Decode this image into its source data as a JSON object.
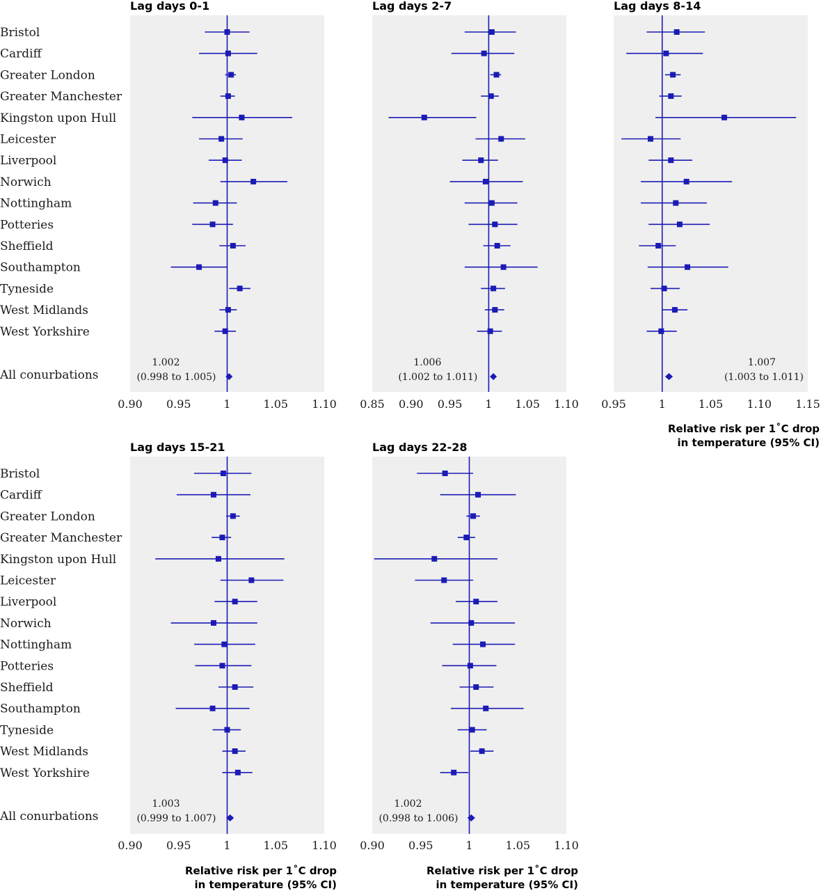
{
  "chart_data": {
    "type": "forest",
    "categories": [
      "Bristol",
      "Cardiff",
      "Greater London",
      "Greater Manchester",
      "Kingston upon Hull",
      "Leicester",
      "Liverpool",
      "Norwich",
      "Nottingham",
      "Potteries",
      "Sheffield",
      "Southampton",
      "Tyneside",
      "West Midlands",
      "West Yorkshire"
    ],
    "pooled_label": "All conurbations",
    "xlabel_line1": "Relative risk per 1˚C drop",
    "xlabel_line2": "in temperature (95% CI)",
    "reference_line": 1,
    "colors": {
      "marker": "#1b1bb5",
      "panel_bg": "#efefef"
    },
    "panels": [
      {
        "title": "Lag days 0-1",
        "xlim": [
          0.9,
          1.1
        ],
        "ticks": [
          "0.90",
          "0.95",
          "1",
          "1.05",
          "1.10"
        ],
        "series": [
          {
            "rr": 1.0,
            "lo": 0.977,
            "hi": 1.023
          },
          {
            "rr": 1.001,
            "lo": 0.971,
            "hi": 1.031
          },
          {
            "rr": 1.004,
            "lo": 0.998,
            "hi": 1.009
          },
          {
            "rr": 1.001,
            "lo": 0.993,
            "hi": 1.008
          },
          {
            "rr": 1.015,
            "lo": 0.964,
            "hi": 1.067
          },
          {
            "rr": 0.994,
            "lo": 0.971,
            "hi": 1.016
          },
          {
            "rr": 0.998,
            "lo": 0.981,
            "hi": 1.015
          },
          {
            "rr": 1.027,
            "lo": 0.993,
            "hi": 1.062
          },
          {
            "rr": 0.988,
            "lo": 0.965,
            "hi": 1.01
          },
          {
            "rr": 0.985,
            "lo": 0.964,
            "hi": 1.006
          },
          {
            "rr": 1.006,
            "lo": 0.992,
            "hi": 1.019
          },
          {
            "rr": 0.971,
            "lo": 0.942,
            "hi": 1.0
          },
          {
            "rr": 1.013,
            "lo": 1.002,
            "hi": 1.024
          },
          {
            "rr": 1.001,
            "lo": 0.992,
            "hi": 1.01
          },
          {
            "rr": 0.998,
            "lo": 0.987,
            "hi": 1.009
          }
        ],
        "pooled": {
          "rr": 1.002,
          "lo": 0.998,
          "hi": 1.005,
          "text1": "1.002",
          "text2": "(0.998 to 1.005)"
        }
      },
      {
        "title": "Lag days 2-7",
        "xlim": [
          0.85,
          1.1
        ],
        "ticks": [
          "0.85",
          "0.90",
          "0.95",
          "1",
          "1.05",
          "1.10"
        ],
        "series": [
          {
            "rr": 1.004,
            "lo": 0.969,
            "hi": 1.035
          },
          {
            "rr": 0.994,
            "lo": 0.952,
            "hi": 1.033
          },
          {
            "rr": 1.01,
            "lo": 1.002,
            "hi": 1.016
          },
          {
            "rr": 1.003,
            "lo": 0.99,
            "hi": 1.013
          },
          {
            "rr": 0.917,
            "lo": 0.871,
            "hi": 0.984
          },
          {
            "rr": 1.016,
            "lo": 0.983,
            "hi": 1.047
          },
          {
            "rr": 0.99,
            "lo": 0.966,
            "hi": 1.012
          },
          {
            "rr": 0.996,
            "lo": 0.95,
            "hi": 1.044
          },
          {
            "rr": 1.004,
            "lo": 0.969,
            "hi": 1.037
          },
          {
            "rr": 1.008,
            "lo": 0.974,
            "hi": 1.037
          },
          {
            "rr": 1.011,
            "lo": 0.993,
            "hi": 1.028
          },
          {
            "rr": 1.019,
            "lo": 0.969,
            "hi": 1.063
          },
          {
            "rr": 1.006,
            "lo": 0.99,
            "hi": 1.021
          },
          {
            "rr": 1.008,
            "lo": 0.995,
            "hi": 1.02
          },
          {
            "rr": 1.002,
            "lo": 0.985,
            "hi": 1.017
          }
        ],
        "pooled": {
          "rr": 1.006,
          "lo": 1.002,
          "hi": 1.011,
          "text1": "1.006",
          "text2": "(1.002 to 1.011)"
        }
      },
      {
        "title": "Lag days 8-14",
        "xlim": [
          0.95,
          1.15
        ],
        "ticks": [
          "0.95",
          "1",
          "1.05",
          "1.10",
          "1.15"
        ],
        "series": [
          {
            "rr": 1.015,
            "lo": 0.984,
            "hi": 1.044
          },
          {
            "rr": 1.004,
            "lo": 0.963,
            "hi": 1.042
          },
          {
            "rr": 1.011,
            "lo": 1.003,
            "hi": 1.019
          },
          {
            "rr": 1.009,
            "lo": 0.997,
            "hi": 1.02
          },
          {
            "rr": 1.064,
            "lo": 0.993,
            "hi": 1.138
          },
          {
            "rr": 0.988,
            "lo": 0.958,
            "hi": 1.019
          },
          {
            "rr": 1.009,
            "lo": 0.986,
            "hi": 1.031
          },
          {
            "rr": 1.025,
            "lo": 0.978,
            "hi": 1.072
          },
          {
            "rr": 1.014,
            "lo": 0.978,
            "hi": 1.046
          },
          {
            "rr": 1.018,
            "lo": 0.986,
            "hi": 1.049
          },
          {
            "rr": 0.996,
            "lo": 0.976,
            "hi": 1.014
          },
          {
            "rr": 1.026,
            "lo": 0.985,
            "hi": 1.068
          },
          {
            "rr": 1.002,
            "lo": 0.988,
            "hi": 1.018
          },
          {
            "rr": 1.013,
            "lo": 1.0,
            "hi": 1.026
          },
          {
            "rr": 0.999,
            "lo": 0.984,
            "hi": 1.015
          }
        ],
        "pooled": {
          "rr": 1.007,
          "lo": 1.003,
          "hi": 1.011,
          "text1": "1.007",
          "text2": "(1.003 to 1.011)"
        }
      },
      {
        "title": "Lag days 15-21",
        "xlim": [
          0.9,
          1.1
        ],
        "ticks": [
          "0.90",
          "0.95",
          "1",
          "1.05",
          "1.10"
        ],
        "series": [
          {
            "rr": 0.996,
            "lo": 0.966,
            "hi": 1.025
          },
          {
            "rr": 0.986,
            "lo": 0.948,
            "hi": 1.024
          },
          {
            "rr": 1.006,
            "lo": 0.999,
            "hi": 1.013
          },
          {
            "rr": 0.995,
            "lo": 0.984,
            "hi": 1.004
          },
          {
            "rr": 0.991,
            "lo": 0.926,
            "hi": 1.059
          },
          {
            "rr": 1.025,
            "lo": 0.993,
            "hi": 1.058
          },
          {
            "rr": 1.008,
            "lo": 0.987,
            "hi": 1.031
          },
          {
            "rr": 0.986,
            "lo": 0.942,
            "hi": 1.031
          },
          {
            "rr": 0.997,
            "lo": 0.966,
            "hi": 1.029
          },
          {
            "rr": 0.995,
            "lo": 0.967,
            "hi": 1.025
          },
          {
            "rr": 1.008,
            "lo": 0.991,
            "hi": 1.027
          },
          {
            "rr": 0.985,
            "lo": 0.947,
            "hi": 1.023
          },
          {
            "rr": 1.0,
            "lo": 0.985,
            "hi": 1.014
          },
          {
            "rr": 1.008,
            "lo": 0.995,
            "hi": 1.019
          },
          {
            "rr": 1.011,
            "lo": 0.995,
            "hi": 1.026
          }
        ],
        "pooled": {
          "rr": 1.003,
          "lo": 0.999,
          "hi": 1.007,
          "text1": "1.003",
          "text2": "(0.999 to 1.007)"
        }
      },
      {
        "title": "Lag days 22-28",
        "xlim": [
          0.9,
          1.1
        ],
        "ticks": [
          "0.90",
          "0.95",
          "1",
          "1.05",
          "1.10"
        ],
        "series": [
          {
            "rr": 0.975,
            "lo": 0.946,
            "hi": 1.004
          },
          {
            "rr": 1.009,
            "lo": 0.97,
            "hi": 1.048
          },
          {
            "rr": 1.004,
            "lo": 0.997,
            "hi": 1.011
          },
          {
            "rr": 0.997,
            "lo": 0.988,
            "hi": 1.006
          },
          {
            "rr": 0.964,
            "lo": 0.902,
            "hi": 1.029
          },
          {
            "rr": 0.974,
            "lo": 0.944,
            "hi": 1.004
          },
          {
            "rr": 1.007,
            "lo": 0.986,
            "hi": 1.029
          },
          {
            "rr": 1.002,
            "lo": 0.96,
            "hi": 1.047
          },
          {
            "rr": 1.014,
            "lo": 0.983,
            "hi": 1.047
          },
          {
            "rr": 1.001,
            "lo": 0.972,
            "hi": 1.028
          },
          {
            "rr": 1.007,
            "lo": 0.99,
            "hi": 1.025
          },
          {
            "rr": 1.017,
            "lo": 0.981,
            "hi": 1.056
          },
          {
            "rr": 1.003,
            "lo": 0.988,
            "hi": 1.018
          },
          {
            "rr": 1.013,
            "lo": 1.001,
            "hi": 1.025
          },
          {
            "rr": 0.984,
            "lo": 0.97,
            "hi": 0.999
          }
        ],
        "pooled": {
          "rr": 1.002,
          "lo": 0.998,
          "hi": 1.006,
          "text1": "1.002",
          "text2": "(0.998 to 1.006)"
        }
      }
    ]
  }
}
